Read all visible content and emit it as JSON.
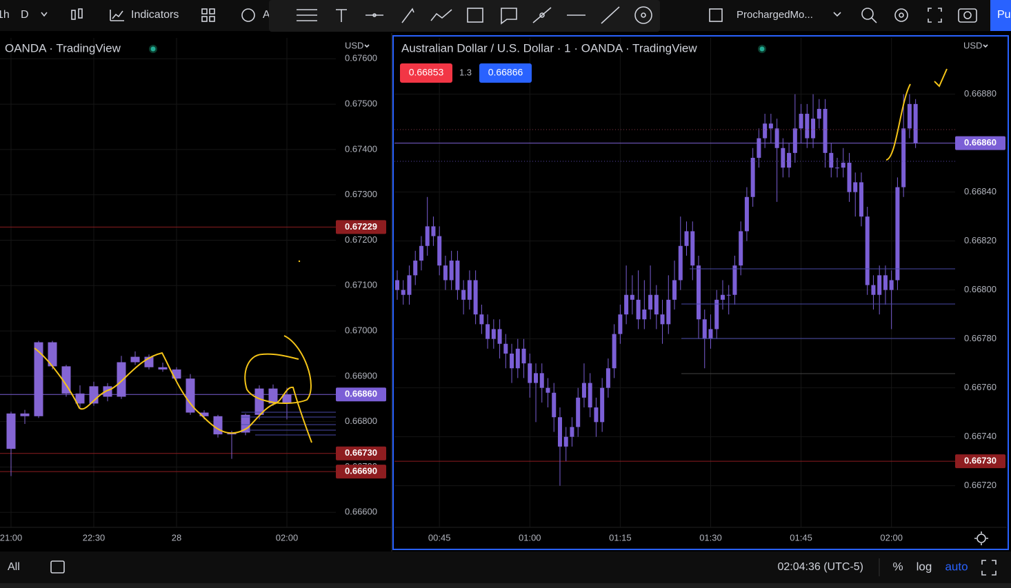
{
  "toolbar": {
    "interval": "1h",
    "period": "D",
    "indicators": "Indicators",
    "alert": "A",
    "layout_name": "ProchargedMo...",
    "publish": "Pu"
  },
  "chart_data": [
    {
      "type": "candlestick",
      "title": "OANDA · TradingView",
      "currency": "USD",
      "color": "#8465d3",
      "categories": [
        "21:00",
        null,
        null,
        null,
        null,
        null,
        "22:30",
        null,
        null,
        null,
        null,
        null,
        "28",
        null,
        null,
        null,
        null,
        null,
        null,
        null,
        "02:00"
      ],
      "open": [
        0.6674,
        0.66818,
        0.66812,
        0.66975,
        0.66922,
        0.66862,
        0.6684,
        0.66878,
        0.66855,
        0.66931,
        0.66943,
        0.6692,
        0.66915,
        0.66895,
        0.6682,
        0.66812,
        0.66772,
        0.66776,
        0.66815,
        0.66873,
        0.6684
      ],
      "high": [
        0.66822,
        0.66826,
        0.66978,
        0.66978,
        0.66925,
        0.6688,
        0.66888,
        0.66885,
        0.66945,
        0.66955,
        0.66948,
        0.6693,
        0.6692,
        0.66905,
        0.66825,
        0.66815,
        0.6678,
        0.66818,
        0.6688,
        0.66882,
        0.66875
      ],
      "low": [
        0.6668,
        0.66795,
        0.66808,
        0.66915,
        0.66855,
        0.6683,
        0.66835,
        0.66845,
        0.6685,
        0.66925,
        0.66915,
        0.6691,
        0.6689,
        0.66815,
        0.66805,
        0.66765,
        0.66718,
        0.6677,
        0.66805,
        0.66835,
        0.66805
      ],
      "close": [
        0.66818,
        0.66812,
        0.66975,
        0.66922,
        0.66862,
        0.6684,
        0.66878,
        0.66855,
        0.66931,
        0.66943,
        0.6692,
        0.66915,
        0.66895,
        0.6682,
        0.66812,
        0.66772,
        0.66776,
        0.66815,
        0.66873,
        0.6684,
        0.6686
      ],
      "ylim": [
        0.66567,
        0.67646
      ],
      "yticks": [
        {
          "value": 0.666,
          "label": "0.66600"
        },
        {
          "value": 0.667,
          "label": "0.66700"
        },
        {
          "value": 0.668,
          "label": "0.66800"
        },
        {
          "value": 0.669,
          "label": "0.66900"
        },
        {
          "value": 0.67,
          "label": "0.67000"
        },
        {
          "value": 0.671,
          "label": "0.67100"
        },
        {
          "value": 0.672,
          "label": "0.67200"
        },
        {
          "value": 0.673,
          "label": "0.67300"
        },
        {
          "value": 0.674,
          "label": "0.67400"
        },
        {
          "value": 0.675,
          "label": "0.67500"
        },
        {
          "value": 0.676,
          "label": "0.67600"
        }
      ],
      "grid": true,
      "price_labels": [
        {
          "value": 0.67229,
          "color": "#8e1d20"
        },
        {
          "value": 0.6686,
          "label": "0.66860",
          "color": "#7b5fd6"
        },
        {
          "value": 0.6673,
          "label": "0.66730",
          "color": "#8e1d20"
        },
        {
          "value": 0.6669,
          "label": "0.66690",
          "color": "#8e1d20"
        }
      ]
    },
    {
      "type": "candlestick",
      "title": "Australian Dollar / U.S. Dollar · 1 · OANDA · TradingView",
      "currency": "USD",
      "color": "#7b5fd6",
      "bid": "0.66853",
      "spread": "1.3",
      "ask": "0.66866",
      "categories": [
        null,
        null,
        null,
        null,
        null,
        null,
        null,
        "00:45",
        null,
        null,
        null,
        null,
        null,
        null,
        null,
        null,
        null,
        null,
        null,
        null,
        null,
        null,
        "01:00",
        null,
        null,
        null,
        null,
        null,
        null,
        null,
        null,
        null,
        null,
        null,
        null,
        null,
        null,
        "01:15",
        null,
        null,
        null,
        null,
        null,
        null,
        null,
        null,
        null,
        null,
        null,
        null,
        null,
        null,
        "01:30",
        null,
        null,
        null,
        null,
        null,
        null,
        null,
        null,
        null,
        null,
        null,
        null,
        null,
        null,
        "01:45",
        null,
        null,
        null,
        null,
        null,
        null,
        null,
        null,
        null,
        null,
        null,
        null,
        null,
        null,
        "02:00",
        null,
        null,
        null,
        null
      ],
      "open": [
        0.66804,
        0.668,
        0.66798,
        0.66806,
        0.66812,
        0.66818,
        0.66826,
        0.66822,
        0.6681,
        0.66804,
        0.66812,
        0.668,
        0.66796,
        0.66804,
        0.6679,
        0.66786,
        0.6678,
        0.66784,
        0.66778,
        0.66774,
        0.66768,
        0.66776,
        0.6677,
        0.66762,
        0.66766,
        0.6676,
        0.66758,
        0.66748,
        0.66736,
        0.6674,
        0.66744,
        0.66756,
        0.66762,
        0.66752,
        0.66746,
        0.6676,
        0.66768,
        0.66782,
        0.6679,
        0.66798,
        0.66796,
        0.66788,
        0.66792,
        0.66798,
        0.6679,
        0.66786,
        0.66796,
        0.66804,
        0.66818,
        0.66824,
        0.6681,
        0.66788,
        0.6678,
        0.66784,
        0.66796,
        0.66798,
        0.66798,
        0.6681,
        0.66824,
        0.66838,
        0.66854,
        0.66862,
        0.66868,
        0.66866,
        0.66858,
        0.6685,
        0.66856,
        0.66866,
        0.66872,
        0.66862,
        0.6687,
        0.66874,
        0.66856,
        0.6685,
        0.6685,
        0.66852,
        0.6684,
        0.66844,
        0.6683,
        0.66802,
        0.66798,
        0.66806,
        0.668,
        0.66804,
        0.66842,
        0.66866,
        0.66876
      ],
      "high": [
        0.66808,
        0.66804,
        0.6681,
        0.66816,
        0.66822,
        0.66838,
        0.6683,
        0.66826,
        0.66814,
        0.66816,
        0.66816,
        0.66804,
        0.66808,
        0.66808,
        0.66794,
        0.6679,
        0.66788,
        0.66788,
        0.66782,
        0.66778,
        0.6678,
        0.6678,
        0.66774,
        0.6677,
        0.6677,
        0.66764,
        0.66762,
        0.66752,
        0.66744,
        0.66748,
        0.6676,
        0.6677,
        0.66766,
        0.66756,
        0.66764,
        0.66772,
        0.66786,
        0.66794,
        0.6681,
        0.66806,
        0.66808,
        0.66804,
        0.6681,
        0.66802,
        0.66796,
        0.66806,
        0.66812,
        0.6683,
        0.66828,
        0.66828,
        0.66814,
        0.66792,
        0.6679,
        0.668,
        0.66804,
        0.66802,
        0.66814,
        0.66828,
        0.66842,
        0.66858,
        0.66866,
        0.66872,
        0.66872,
        0.6687,
        0.66862,
        0.6686,
        0.6688,
        0.66876,
        0.66876,
        0.6688,
        0.66878,
        0.66878,
        0.6686,
        0.66854,
        0.66858,
        0.66856,
        0.66848,
        0.66848,
        0.66834,
        0.66806,
        0.6681,
        0.6681,
        0.66808,
        0.66846,
        0.6688,
        0.6688,
        0.66878
      ],
      "low": [
        0.66796,
        0.66794,
        0.66794,
        0.66802,
        0.66808,
        0.66814,
        0.66818,
        0.66806,
        0.668,
        0.668,
        0.66796,
        0.6679,
        0.66792,
        0.66786,
        0.66782,
        0.66776,
        0.66776,
        0.66772,
        0.66768,
        0.66762,
        0.66764,
        0.66764,
        0.66756,
        0.66746,
        0.66754,
        0.66752,
        0.66742,
        0.6672,
        0.6673,
        0.66736,
        0.6674,
        0.66752,
        0.66748,
        0.6674,
        0.66742,
        0.66756,
        0.66764,
        0.66778,
        0.66786,
        0.6679,
        0.66784,
        0.66784,
        0.66788,
        0.66784,
        0.66778,
        0.66782,
        0.66792,
        0.668,
        0.66814,
        0.66804,
        0.6678,
        0.66768,
        0.66776,
        0.6678,
        0.66792,
        0.6679,
        0.66794,
        0.66806,
        0.6682,
        0.66834,
        0.6685,
        0.66858,
        0.6686,
        0.66836,
        0.66846,
        0.66846,
        0.66852,
        0.6686,
        0.66858,
        0.66858,
        0.66866,
        0.6685,
        0.66846,
        0.66846,
        0.66846,
        0.66836,
        0.6683,
        0.66826,
        0.66798,
        0.66792,
        0.6679,
        0.66794,
        0.66784,
        0.668,
        0.66838,
        0.66862,
        0.66858
      ],
      "close": [
        0.668,
        0.66798,
        0.66806,
        0.66812,
        0.66818,
        0.66826,
        0.66822,
        0.6681,
        0.66804,
        0.66812,
        0.668,
        0.66796,
        0.66804,
        0.6679,
        0.66786,
        0.6678,
        0.66784,
        0.66778,
        0.66774,
        0.66768,
        0.66776,
        0.6677,
        0.66762,
        0.66766,
        0.6676,
        0.66758,
        0.66748,
        0.66736,
        0.6674,
        0.66744,
        0.66756,
        0.66762,
        0.66752,
        0.66746,
        0.6676,
        0.66768,
        0.66782,
        0.6679,
        0.66798,
        0.66796,
        0.66788,
        0.66792,
        0.66798,
        0.6679,
        0.66786,
        0.66796,
        0.66804,
        0.66818,
        0.66824,
        0.6681,
        0.66788,
        0.6678,
        0.66784,
        0.66796,
        0.66798,
        0.66798,
        0.6681,
        0.66824,
        0.66838,
        0.66854,
        0.66862,
        0.66868,
        0.66866,
        0.66858,
        0.6685,
        0.66856,
        0.66866,
        0.66872,
        0.66862,
        0.6687,
        0.66874,
        0.66856,
        0.6685,
        0.6685,
        0.66852,
        0.6684,
        0.66844,
        0.6683,
        0.66802,
        0.66798,
        0.66806,
        0.668,
        0.66804,
        0.66842,
        0.66866,
        0.66876,
        0.6686
      ],
      "ylim": [
        0.66703,
        0.66903
      ],
      "yticks": [
        {
          "value": 0.6672,
          "label": "0.66720"
        },
        {
          "value": 0.6674,
          "label": "0.66740"
        },
        {
          "value": 0.6676,
          "label": "0.66760"
        },
        {
          "value": 0.6678,
          "label": "0.66780"
        },
        {
          "value": 0.668,
          "label": "0.66800"
        },
        {
          "value": 0.6682,
          "label": "0.66820"
        },
        {
          "value": 0.6684,
          "label": "0.66840"
        },
        {
          "value": 0.6686,
          "label": "0.66860"
        },
        {
          "value": 0.6688,
          "label": "0.66880"
        }
      ],
      "grid": true,
      "price_labels": [
        {
          "value": 0.6686,
          "label": "0.66860",
          "color": "#7b5fd6"
        },
        {
          "value": 0.6673,
          "label": "0.66730",
          "color": "#8e1d20"
        }
      ]
    }
  ],
  "bottom_bar": {
    "range": "All",
    "clock": "02:04:36 (UTC-5)",
    "percent": "%",
    "log": "log",
    "auto": "auto"
  }
}
